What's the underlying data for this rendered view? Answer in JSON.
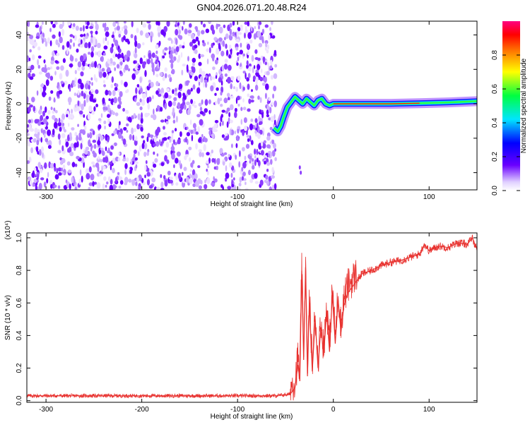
{
  "title": "GN04.2026.071.20.48.R24",
  "colors": {
    "line": "#e8312e",
    "axis": "#000000",
    "speckle": [
      "#6a00ff",
      "#8c3cff",
      "#b07cff",
      "#d3b8ff",
      "#eee2ff"
    ]
  },
  "chart_data": [
    {
      "type": "heatmap",
      "title": "GN04.2026.071.20.48.R24",
      "xlabel": "Height of straight line (km)",
      "ylabel": "Frequency (Hz)",
      "xlim": [
        -320,
        150
      ],
      "ylim": [
        -50,
        48
      ],
      "x_ticks": [
        -300,
        -200,
        -100,
        0,
        100
      ],
      "x_tick_labels": [
        "-300",
        "-200",
        "-100",
        "0",
        "100"
      ],
      "y_ticks": [
        -40,
        -20,
        0,
        20,
        40
      ],
      "y_tick_labels": [
        "-40",
        "-20",
        "0",
        "20",
        "40"
      ],
      "noise_region_x": [
        -320,
        -60
      ],
      "signal_track": {
        "x": [
          -62,
          -58,
          -55,
          -52,
          -48,
          -44,
          -40,
          -36,
          -32,
          -28,
          -24,
          -20,
          -16,
          -12,
          -8,
          -4,
          0,
          10,
          30,
          60,
          90,
          120,
          150
        ],
        "y": [
          -14,
          -16,
          -13,
          -8,
          -2,
          1,
          4,
          2,
          0,
          3,
          1,
          -1,
          2,
          3,
          0,
          -1,
          0,
          0,
          0,
          0,
          0.3,
          0.8,
          1.5
        ]
      },
      "colorbar": {
        "label": "Normalized spectral amplitude",
        "range": [
          0,
          1
        ],
        "ticks": [
          0.0,
          0.2,
          0.4,
          0.6,
          0.8
        ],
        "tick_labels": [
          "0.0",
          "0.2",
          "0.4",
          "0.6",
          "0.8"
        ]
      }
    },
    {
      "type": "line",
      "xlabel": "Height of straight line (km)",
      "ylabel": "SNR (10 * v/v)",
      "scale_label": "(x10⁴)",
      "xlim": [
        -320,
        150
      ],
      "ylim": [
        -0.01,
        1.03
      ],
      "x_ticks": [
        -300,
        -200,
        -100,
        0,
        100
      ],
      "x_tick_labels": [
        "-300",
        "-200",
        "-100",
        "0",
        "100"
      ],
      "y_ticks": [
        0.0,
        0.2,
        0.4,
        0.6,
        0.8,
        1.0
      ],
      "y_tick_labels": [
        "0.0",
        "0.2",
        "0.4",
        "0.6",
        "0.8",
        "1.0"
      ],
      "series": [
        {
          "name": "SNR",
          "x": [
            -320,
            -300,
            -250,
            -200,
            -150,
            -100,
            -60,
            -45,
            -40,
            -37,
            -35,
            -33,
            -31,
            -29,
            -27,
            -25,
            -22,
            -19,
            -16,
            -13,
            -10,
            -7,
            -4,
            -1,
            2,
            5,
            8,
            11,
            15,
            20,
            25,
            30,
            40,
            50,
            60,
            70,
            80,
            90,
            95,
            100,
            110,
            120,
            130,
            140,
            145,
            150
          ],
          "y": [
            0.03,
            0.03,
            0.03,
            0.03,
            0.03,
            0.03,
            0.03,
            0.04,
            0.08,
            0.22,
            0.12,
            0.8,
            0.25,
            0.82,
            0.15,
            0.6,
            0.18,
            0.5,
            0.2,
            0.45,
            0.28,
            0.55,
            0.3,
            0.65,
            0.35,
            0.62,
            0.42,
            0.58,
            0.66,
            0.7,
            0.74,
            0.78,
            0.8,
            0.83,
            0.85,
            0.86,
            0.88,
            0.9,
            0.96,
            0.92,
            0.95,
            0.94,
            0.97,
            0.96,
            1.0,
            0.93
          ]
        }
      ]
    }
  ]
}
